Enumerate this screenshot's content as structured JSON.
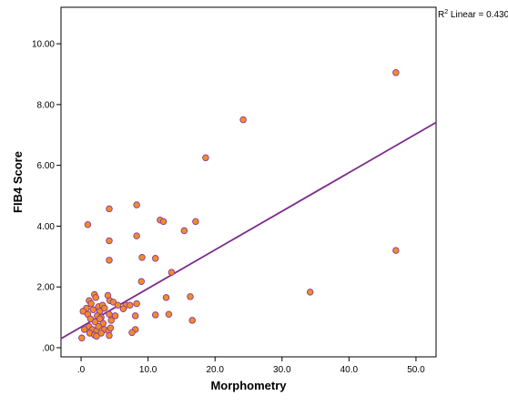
{
  "chart_data": {
    "type": "scatter",
    "xlabel": "Morphometry",
    "ylabel": "FIB4 Score",
    "xlim": [
      -3,
      53
    ],
    "ylim": [
      -0.3,
      11.2
    ],
    "x_ticks": [
      0,
      10,
      20,
      30,
      40,
      50
    ],
    "x_tick_labels": [
      ".0",
      "10.0",
      "20.0",
      "30.0",
      "40.0",
      "50.0"
    ],
    "y_ticks": [
      0,
      2,
      4,
      6,
      8,
      10
    ],
    "y_tick_labels": [
      ".00",
      "2.00",
      "4.00",
      "6.00",
      "8.00",
      "10.00"
    ],
    "grid": false,
    "annotation": {
      "prefix": "R",
      "superscript": "2",
      "text": " Linear = 0.430"
    },
    "fit_line": {
      "type": "linear",
      "intercept": 0.68,
      "slope": 0.127
    },
    "marker": {
      "fill": "#f28c28",
      "stroke": "#8b3a9a"
    },
    "line_color": "#7b2a8c",
    "points": [
      [
        47,
        9.05
      ],
      [
        24.2,
        7.5
      ],
      [
        18.6,
        6.25
      ],
      [
        8.3,
        4.7
      ],
      [
        4.2,
        4.57
      ],
      [
        1,
        4.05
      ],
      [
        11.8,
        4.2
      ],
      [
        12.3,
        4.15
      ],
      [
        17.1,
        4.15
      ],
      [
        15.4,
        3.85
      ],
      [
        8.3,
        3.68
      ],
      [
        4.2,
        3.52
      ],
      [
        9.1,
        2.97
      ],
      [
        11.1,
        2.94
      ],
      [
        4.2,
        2.88
      ],
      [
        47,
        3.2
      ],
      [
        13.5,
        2.48
      ],
      [
        9,
        2.18
      ],
      [
        34.2,
        1.83
      ],
      [
        1.2,
        1.55
      ],
      [
        2,
        1.75
      ],
      [
        2.2,
        1.65
      ],
      [
        1.5,
        1.45
      ],
      [
        0.8,
        1.3
      ],
      [
        1.8,
        1.25
      ],
      [
        2.6,
        1.35
      ],
      [
        2.8,
        1.2
      ],
      [
        3.2,
        1.4
      ],
      [
        3.5,
        1.3
      ],
      [
        4,
        1.72
      ],
      [
        4.3,
        1.55
      ],
      [
        4.8,
        1.5
      ],
      [
        5.5,
        1.4
      ],
      [
        0.3,
        1.2
      ],
      [
        1,
        1.1
      ],
      [
        2.4,
        1.05
      ],
      [
        3,
        1
      ],
      [
        4.2,
        1.1
      ],
      [
        5.1,
        1.05
      ],
      [
        1.4,
        0.95
      ],
      [
        2.1,
        0.85
      ],
      [
        2.8,
        0.95
      ],
      [
        3.3,
        0.8
      ],
      [
        4.5,
        0.9
      ],
      [
        0.5,
        0.6
      ],
      [
        1.2,
        0.7
      ],
      [
        1.7,
        0.6
      ],
      [
        2.3,
        0.55
      ],
      [
        2.6,
        0.7
      ],
      [
        3.5,
        0.6
      ],
      [
        4.1,
        0.55
      ],
      [
        4.4,
        0.65
      ],
      [
        1.3,
        0.48
      ],
      [
        2,
        0.42
      ],
      [
        3,
        0.48
      ],
      [
        4.2,
        0.4
      ],
      [
        0.1,
        0.32
      ],
      [
        2.3,
        0.38
      ],
      [
        6.7,
        1.4
      ],
      [
        6.3,
        1.28
      ],
      [
        7.3,
        1.4
      ],
      [
        8.3,
        1.45
      ],
      [
        8.1,
        1.05
      ],
      [
        11.1,
        1.08
      ],
      [
        13.1,
        1.1
      ],
      [
        12.7,
        1.65
      ],
      [
        16.3,
        1.68
      ],
      [
        16.6,
        0.9
      ],
      [
        8.1,
        0.6
      ],
      [
        7.6,
        0.5
      ]
    ]
  }
}
